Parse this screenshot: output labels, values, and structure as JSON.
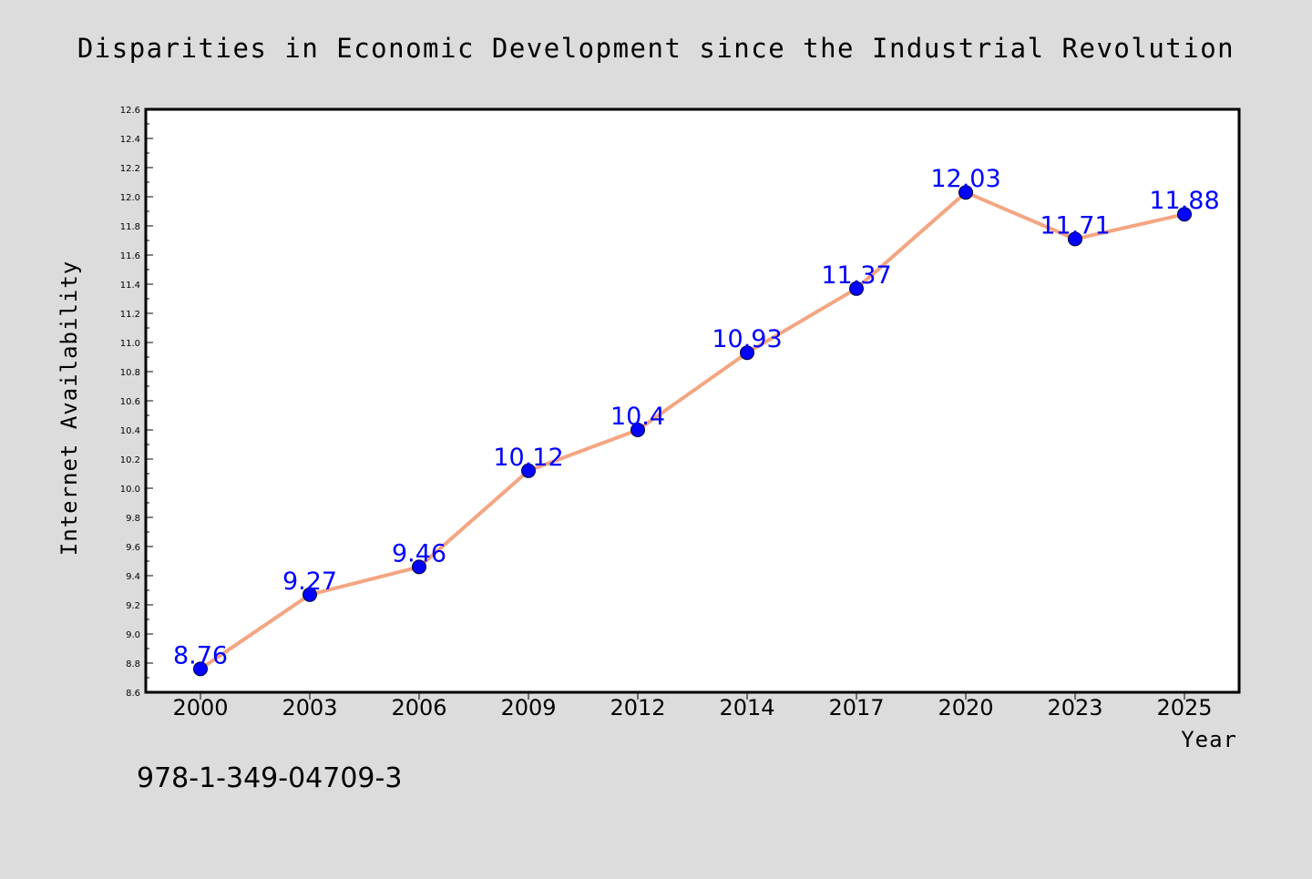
{
  "chart_data": {
    "type": "line",
    "title": "Disparities in Economic Development since the Industrial Revolution",
    "xlabel": "Year",
    "ylabel": "Internet Availability",
    "categories": [
      "2000",
      "2003",
      "2006",
      "2009",
      "2012",
      "2014",
      "2017",
      "2020",
      "2023",
      "2025"
    ],
    "series": [
      {
        "values": [
          8.76,
          9.27,
          9.46,
          10.12,
          10.4,
          10.93,
          11.37,
          12.03,
          11.71,
          11.88
        ],
        "data_labels": [
          "8.76",
          "9.27",
          "9.46",
          "10.12",
          "10.4",
          "10.93",
          "11.37",
          "12.03",
          "11.71",
          "11.88"
        ],
        "line_color": "#f4a582",
        "marker_color": "#0000ff"
      }
    ],
    "ylim": [
      8.6,
      12.6
    ],
    "yticks": [
      "8.6",
      "8.8",
      "9.0",
      "9.2",
      "9.4",
      "9.6",
      "9.8",
      "10.0",
      "10.2",
      "10.4",
      "10.6",
      "10.8",
      "11.0",
      "11.2",
      "11.4",
      "11.6",
      "11.8",
      "12.0",
      "12.2",
      "12.4",
      "12.6"
    ],
    "grid": false,
    "legend": "none"
  },
  "footer": {
    "text": "978-1-349-04709-3"
  },
  "colors": {
    "background": "#dcdcdc",
    "plot_background": "#ffffff",
    "data_label": "#0000ff"
  }
}
